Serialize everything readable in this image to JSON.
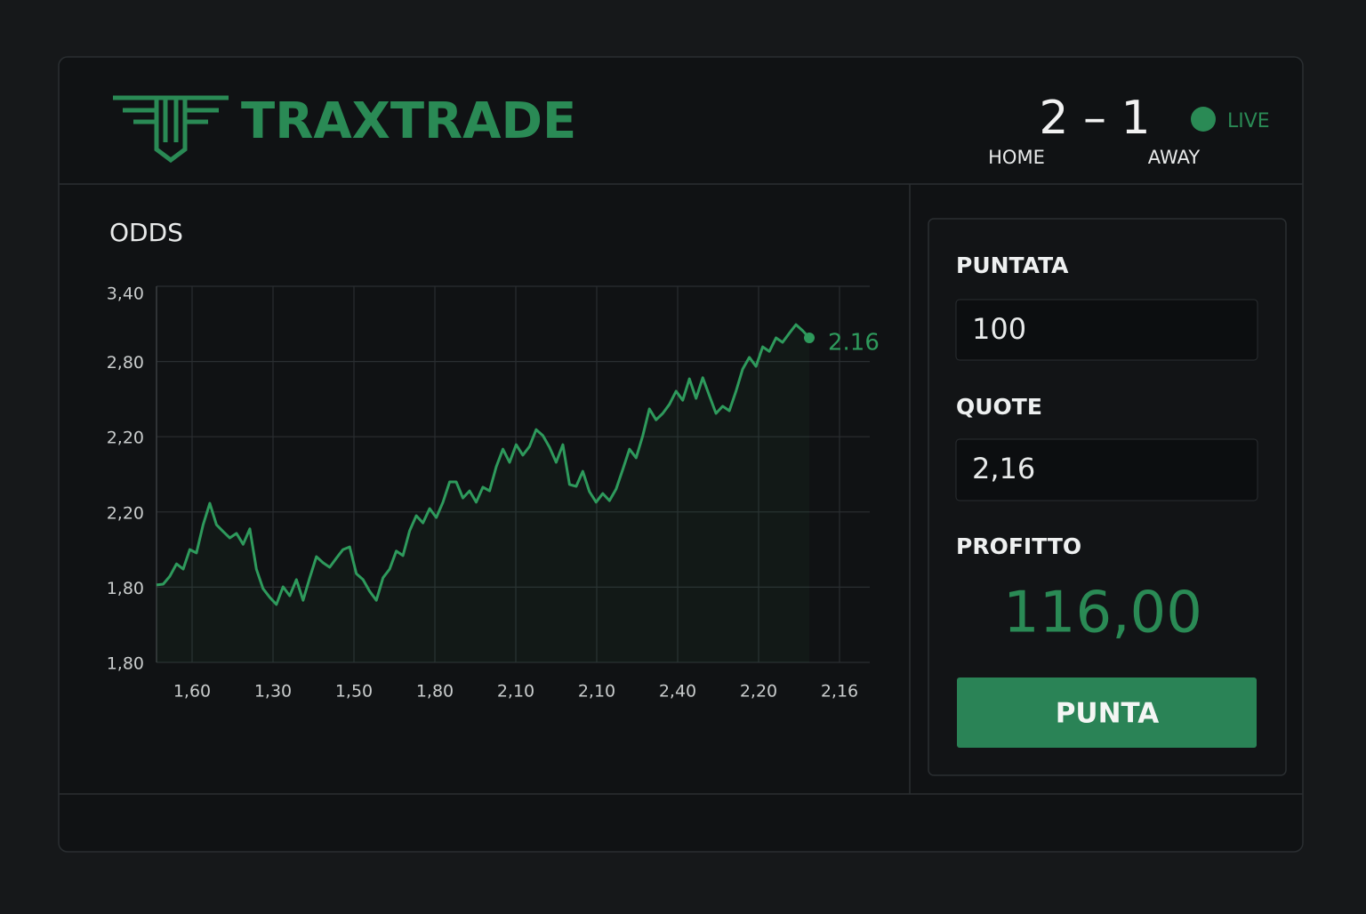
{
  "header": {
    "brand": "TRAXTRADE"
  },
  "scoreboard": {
    "score": "2 – 1",
    "home_label": "HOME",
    "away_label": "AWAY",
    "status": "LIVE"
  },
  "chart_data": {
    "type": "line",
    "title": "ODDS",
    "color": "#2e9a5c",
    "grid": true,
    "ylim": [
      0,
      100
    ],
    "ytick_labels": [
      "3,40",
      "2,80",
      "2,20",
      "2,20",
      "1,80",
      "1,80"
    ],
    "xtick_labels": [
      "1,60",
      "1,30",
      "1,50",
      "1,80",
      "2,10",
      "2,10",
      "2,40",
      "2,20",
      "2,16"
    ],
    "annotation": "2.16",
    "values": [
      20.6,
      20.8,
      22.9,
      26.2,
      24.8,
      30.0,
      29.1,
      36.6,
      42.3,
      36.6,
      34.8,
      33.1,
      34.3,
      31.4,
      35.5,
      24.8,
      19.6,
      17.3,
      15.4,
      20.1,
      17.7,
      22.0,
      16.5,
      22.5,
      28.1,
      26.5,
      25.3,
      27.7,
      30.0,
      30.7,
      23.6,
      22.0,
      18.9,
      16.5,
      22.5,
      24.8,
      29.6,
      28.4,
      35.0,
      39.0,
      37.1,
      40.9,
      38.5,
      42.6,
      48.0,
      48.0,
      43.7,
      45.6,
      42.6,
      46.6,
      45.6,
      52.0,
      56.7,
      53.2,
      57.9,
      55.1,
      57.4,
      61.9,
      60.3,
      57.2,
      53.2,
      57.9,
      47.3,
      46.8,
      50.8,
      45.4,
      42.6,
      44.9,
      43.0,
      46.1,
      51.3,
      56.7,
      54.4,
      60.3,
      67.4,
      64.5,
      66.2,
      68.6,
      72.1,
      69.7,
      75.4,
      70.2,
      75.7,
      70.9,
      66.2,
      68.1,
      66.9,
      72.1,
      78.0,
      81.1,
      78.7,
      83.9,
      82.7,
      86.3,
      85.1,
      87.5,
      89.8,
      88.2,
      86.3
    ]
  },
  "form": {
    "stake_label": "PUNTATA",
    "stake": "100",
    "odds_label": "QUOTE",
    "odds": "2,16",
    "profit_label": "PROFITTO",
    "profit": "116,00",
    "button": "PUNTA"
  }
}
